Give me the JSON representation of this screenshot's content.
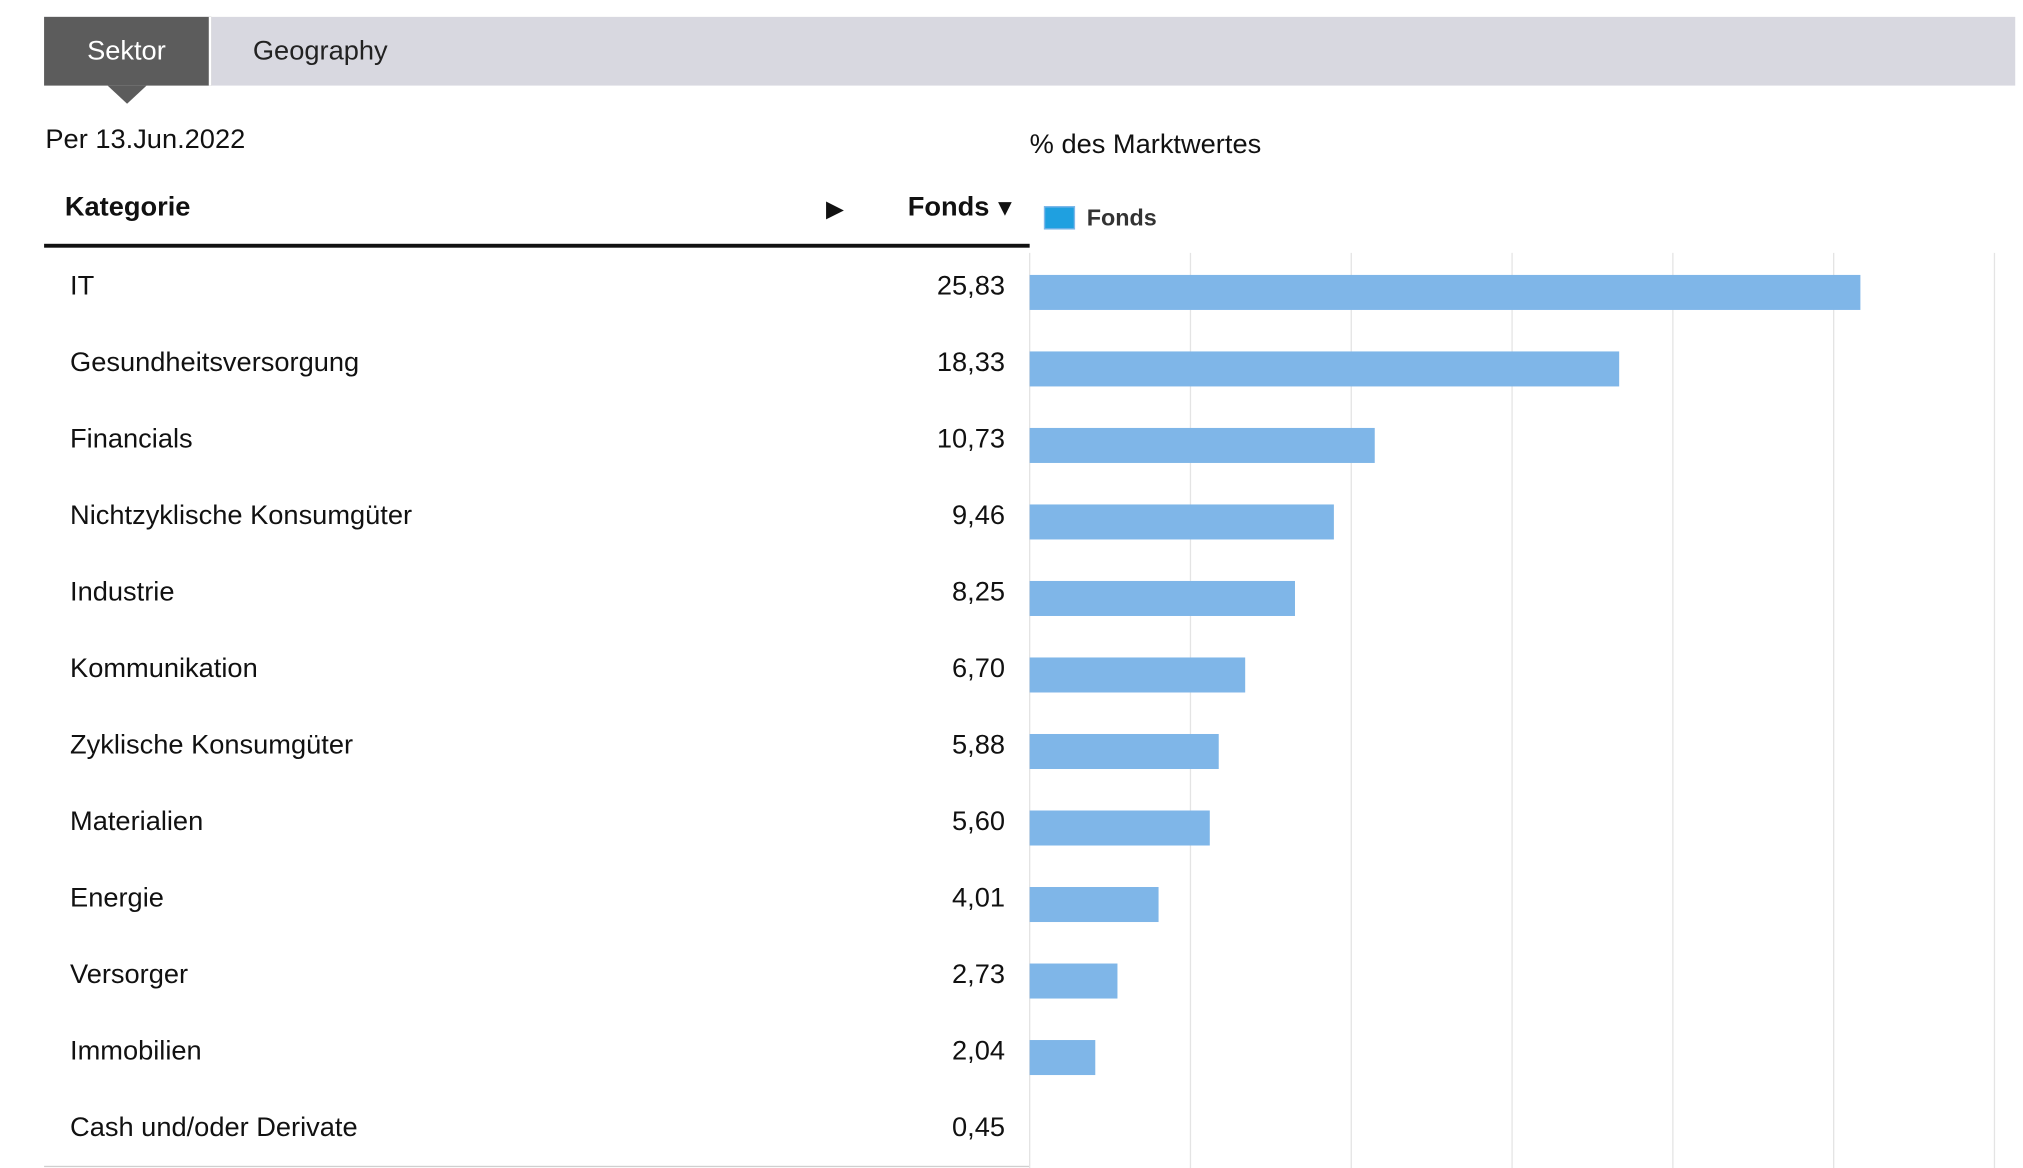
{
  "tabs": [
    {
      "label": "Sektor",
      "active": true
    },
    {
      "label": "Geography",
      "active": false
    }
  ],
  "as_of": "Per 13.Jun.2022",
  "table": {
    "header_category": "Kategorie",
    "header_fund": "Fonds",
    "expand_icon": "play-triangle-icon",
    "sort_icon": "sort-down-triangle-icon",
    "rows": [
      {
        "name": "IT",
        "value": "25,83"
      },
      {
        "name": "Gesundheitsversorgung",
        "value": "18,33"
      },
      {
        "name": "Financials",
        "value": "10,73"
      },
      {
        "name": "Nichtzyklische Konsumgüter",
        "value": "9,46"
      },
      {
        "name": "Industrie",
        "value": "8,25"
      },
      {
        "name": "Kommunikation",
        "value": "6,70"
      },
      {
        "name": "Zyklische Konsumgüter",
        "value": "5,88"
      },
      {
        "name": "Materialien",
        "value": "5,60"
      },
      {
        "name": "Energie",
        "value": "4,01"
      },
      {
        "name": "Versorger",
        "value": "2,73"
      },
      {
        "name": "Immobilien",
        "value": "2,04"
      },
      {
        "name": "Cash und/oder Derivate",
        "value": "0,45"
      }
    ]
  },
  "colors": {
    "bar": "#7fb6e8",
    "legend_swatch": "#1fa0e0",
    "grid": "#e4e4e4",
    "active_tab": "#5c5c5c",
    "tab_bar": "#d8d8e0"
  },
  "chart_data": {
    "type": "bar",
    "orientation": "horizontal",
    "title": "% des Marktwertes",
    "legend": [
      "Fonds"
    ],
    "legend_position": "top-left",
    "grid": true,
    "xlim": [
      0,
      30
    ],
    "x_grid_step": 5,
    "categories": [
      "IT",
      "Gesundheitsversorgung",
      "Financials",
      "Nichtzyklische Konsumgüter",
      "Industrie",
      "Kommunikation",
      "Zyklische Konsumgüter",
      "Materialien",
      "Energie",
      "Versorger",
      "Immobilien",
      "Cash und/oder Derivate"
    ],
    "series": [
      {
        "name": "Fonds",
        "values": [
          25.83,
          18.33,
          10.73,
          9.46,
          8.25,
          6.7,
          5.88,
          5.6,
          4.01,
          2.73,
          2.04,
          0.45
        ]
      }
    ]
  }
}
